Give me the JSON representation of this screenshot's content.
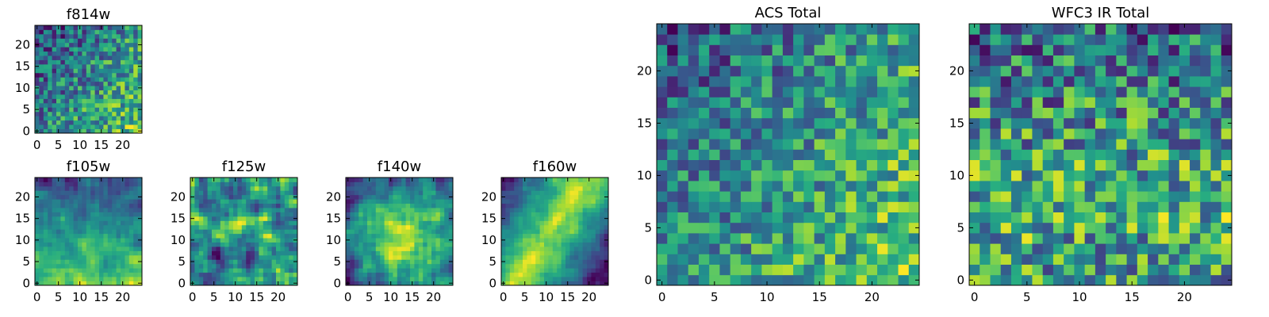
{
  "chart_data": [
    {
      "type": "heatmap",
      "title": "f814w",
      "colormap": "viridis",
      "grid_size": 25,
      "x_ticks": [
        0,
        5,
        10,
        15,
        20
      ],
      "y_ticks": [
        0,
        5,
        10,
        15,
        20
      ],
      "xlim": [
        -0.5,
        24.5
      ],
      "ylim": [
        -0.5,
        24.5
      ],
      "grid": false,
      "pattern": "pixel noise, brighter toward lower-right"
    },
    {
      "type": "heatmap",
      "title": "f105w",
      "colormap": "viridis",
      "grid_size": 25,
      "x_ticks": [
        0,
        5,
        10,
        15,
        20
      ],
      "y_ticks": [
        0,
        5,
        10,
        15,
        20
      ],
      "xlim": [
        -0.5,
        24.5
      ],
      "ylim": [
        -0.5,
        24.5
      ],
      "grid": false,
      "pattern": "smooth noise, brighter in lower half"
    },
    {
      "type": "heatmap",
      "title": "f125w",
      "colormap": "viridis",
      "grid_size": 25,
      "x_ticks": [
        0,
        5,
        10,
        15,
        20
      ],
      "y_ticks": [
        0,
        5,
        10,
        15,
        20
      ],
      "xlim": [
        -0.5,
        24.5
      ],
      "ylim": [
        -0.5,
        24.5
      ],
      "grid": false,
      "pattern": "smooth noise"
    },
    {
      "type": "heatmap",
      "title": "f140w",
      "colormap": "viridis",
      "grid_size": 25,
      "x_ticks": [
        0,
        5,
        10,
        15,
        20
      ],
      "y_ticks": [
        0,
        5,
        10,
        15,
        20
      ],
      "xlim": [
        -0.5,
        24.5
      ],
      "ylim": [
        -0.5,
        24.5
      ],
      "grid": false,
      "pattern": "smooth noise, bright center"
    },
    {
      "type": "heatmap",
      "title": "f160w",
      "colormap": "viridis",
      "grid_size": 25,
      "x_ticks": [
        0,
        5,
        10,
        15,
        20
      ],
      "y_ticks": [
        0,
        5,
        10,
        15,
        20
      ],
      "xlim": [
        -0.5,
        24.5
      ],
      "ylim": [
        -0.5,
        24.5
      ],
      "grid": false,
      "pattern": "smooth noise, bright diagonal band"
    },
    {
      "type": "heatmap",
      "title": "ACS Total",
      "colormap": "viridis",
      "grid_size": 25,
      "x_ticks": [
        0,
        5,
        10,
        15,
        20
      ],
      "y_ticks": [
        0,
        5,
        10,
        15,
        20
      ],
      "xlim": [
        -0.5,
        24.5
      ],
      "ylim": [
        -0.5,
        24.5
      ],
      "grid": false,
      "pattern": "pixel noise, brighter toward lower-right"
    },
    {
      "type": "heatmap",
      "title": "WFC3 IR Total",
      "colormap": "viridis",
      "grid_size": 25,
      "x_ticks": [
        0,
        5,
        10,
        15,
        20
      ],
      "y_ticks": [
        0,
        5,
        10,
        15,
        20
      ],
      "xlim": [
        -0.5,
        24.5
      ],
      "ylim": [
        -0.5,
        24.5
      ],
      "grid": false,
      "pattern": "pixel noise, brighter in middle band"
    }
  ]
}
